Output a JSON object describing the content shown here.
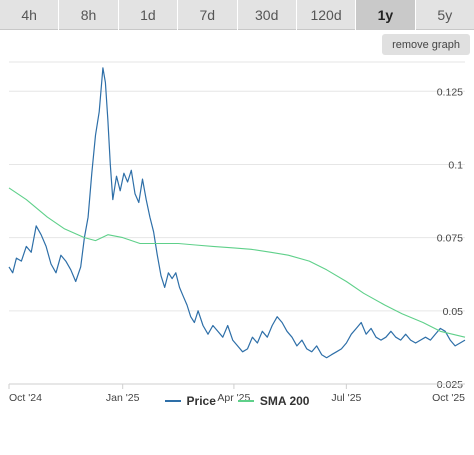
{
  "tabs": [
    {
      "label": "4h",
      "active": false
    },
    {
      "label": "8h",
      "active": false
    },
    {
      "label": "1d",
      "active": false
    },
    {
      "label": "7d",
      "active": false
    },
    {
      "label": "30d",
      "active": false
    },
    {
      "label": "120d",
      "active": false
    },
    {
      "label": "1y",
      "active": true
    },
    {
      "label": "5y",
      "active": false
    }
  ],
  "remove_graph_label": "remove graph",
  "colors": {
    "price": "#2e6fa8",
    "sma": "#5fd08a",
    "grid": "#e6e6e6",
    "axis": "#cfcfcf"
  },
  "chart_data": {
    "type": "line",
    "x_tick_labels": [
      "Oct '24",
      "Jan '25",
      "Apr '25",
      "Jul '25",
      "Oct '25"
    ],
    "y_tick_labels": [
      "0.125",
      "0.1",
      "0.075",
      "0.05",
      "0.025"
    ],
    "y_ticks": [
      0.125,
      0.1,
      0.075,
      0.05,
      0.025
    ],
    "ylim": [
      0.025,
      0.135
    ],
    "xlim": [
      "2024-10-01",
      "2025-10-05"
    ],
    "grid": true,
    "legend_position": "bottom",
    "series": [
      {
        "name": "Price",
        "color": "#2e6fa8",
        "points": [
          [
            "2024-10-01",
            0.065
          ],
          [
            "2024-10-04",
            0.063
          ],
          [
            "2024-10-07",
            0.068
          ],
          [
            "2024-10-11",
            0.067
          ],
          [
            "2024-10-15",
            0.072
          ],
          [
            "2024-10-19",
            0.07
          ],
          [
            "2024-10-23",
            0.079
          ],
          [
            "2024-10-27",
            0.076
          ],
          [
            "2024-10-31",
            0.072
          ],
          [
            "2024-11-04",
            0.066
          ],
          [
            "2024-11-08",
            0.063
          ],
          [
            "2024-11-12",
            0.069
          ],
          [
            "2024-11-16",
            0.067
          ],
          [
            "2024-11-20",
            0.064
          ],
          [
            "2024-11-24",
            0.06
          ],
          [
            "2024-11-28",
            0.065
          ],
          [
            "2024-12-01",
            0.075
          ],
          [
            "2024-12-04",
            0.082
          ],
          [
            "2024-12-07",
            0.097
          ],
          [
            "2024-12-10",
            0.11
          ],
          [
            "2024-12-13",
            0.118
          ],
          [
            "2024-12-16",
            0.133
          ],
          [
            "2024-12-18",
            0.128
          ],
          [
            "2024-12-20",
            0.115
          ],
          [
            "2024-12-22",
            0.1
          ],
          [
            "2024-12-24",
            0.088
          ],
          [
            "2024-12-27",
            0.096
          ],
          [
            "2024-12-30",
            0.091
          ],
          [
            "2025-01-02",
            0.097
          ],
          [
            "2025-01-05",
            0.094
          ],
          [
            "2025-01-08",
            0.098
          ],
          [
            "2025-01-11",
            0.09
          ],
          [
            "2025-01-14",
            0.087
          ],
          [
            "2025-01-17",
            0.095
          ],
          [
            "2025-01-20",
            0.088
          ],
          [
            "2025-01-23",
            0.082
          ],
          [
            "2025-01-26",
            0.077
          ],
          [
            "2025-01-29",
            0.069
          ],
          [
            "2025-02-01",
            0.062
          ],
          [
            "2025-02-04",
            0.058
          ],
          [
            "2025-02-07",
            0.063
          ],
          [
            "2025-02-10",
            0.061
          ],
          [
            "2025-02-13",
            0.063
          ],
          [
            "2025-02-16",
            0.058
          ],
          [
            "2025-02-19",
            0.055
          ],
          [
            "2025-02-22",
            0.052
          ],
          [
            "2025-02-25",
            0.048
          ],
          [
            "2025-02-28",
            0.046
          ],
          [
            "2025-03-03",
            0.05
          ],
          [
            "2025-03-07",
            0.045
          ],
          [
            "2025-03-11",
            0.042
          ],
          [
            "2025-03-15",
            0.045
          ],
          [
            "2025-03-19",
            0.043
          ],
          [
            "2025-03-23",
            0.041
          ],
          [
            "2025-03-27",
            0.045
          ],
          [
            "2025-03-31",
            0.04
          ],
          [
            "2025-04-04",
            0.038
          ],
          [
            "2025-04-08",
            0.036
          ],
          [
            "2025-04-12",
            0.037
          ],
          [
            "2025-04-16",
            0.041
          ],
          [
            "2025-04-20",
            0.039
          ],
          [
            "2025-04-24",
            0.043
          ],
          [
            "2025-04-28",
            0.041
          ],
          [
            "2025-05-02",
            0.045
          ],
          [
            "2025-05-06",
            0.048
          ],
          [
            "2025-05-10",
            0.046
          ],
          [
            "2025-05-14",
            0.043
          ],
          [
            "2025-05-18",
            0.041
          ],
          [
            "2025-05-22",
            0.038
          ],
          [
            "2025-05-26",
            0.04
          ],
          [
            "2025-05-30",
            0.037
          ],
          [
            "2025-06-03",
            0.036
          ],
          [
            "2025-06-07",
            0.038
          ],
          [
            "2025-06-11",
            0.035
          ],
          [
            "2025-06-15",
            0.034
          ],
          [
            "2025-06-19",
            0.035
          ],
          [
            "2025-06-23",
            0.036
          ],
          [
            "2025-06-27",
            0.037
          ],
          [
            "2025-07-01",
            0.039
          ],
          [
            "2025-07-05",
            0.042
          ],
          [
            "2025-07-09",
            0.044
          ],
          [
            "2025-07-13",
            0.046
          ],
          [
            "2025-07-17",
            0.042
          ],
          [
            "2025-07-21",
            0.044
          ],
          [
            "2025-07-25",
            0.041
          ],
          [
            "2025-07-29",
            0.04
          ],
          [
            "2025-08-02",
            0.041
          ],
          [
            "2025-08-06",
            0.043
          ],
          [
            "2025-08-10",
            0.041
          ],
          [
            "2025-08-14",
            0.04
          ],
          [
            "2025-08-18",
            0.042
          ],
          [
            "2025-08-22",
            0.04
          ],
          [
            "2025-08-26",
            0.039
          ],
          [
            "2025-08-30",
            0.04
          ],
          [
            "2025-09-03",
            0.041
          ],
          [
            "2025-09-07",
            0.04
          ],
          [
            "2025-09-11",
            0.042
          ],
          [
            "2025-09-15",
            0.044
          ],
          [
            "2025-09-19",
            0.043
          ],
          [
            "2025-09-23",
            0.04
          ],
          [
            "2025-09-27",
            0.038
          ],
          [
            "2025-10-01",
            0.039
          ],
          [
            "2025-10-05",
            0.04
          ]
        ]
      },
      {
        "name": "SMA 200",
        "color": "#5fd08a",
        "points": [
          [
            "2024-10-01",
            0.092
          ],
          [
            "2024-10-15",
            0.088
          ],
          [
            "2024-11-01",
            0.082
          ],
          [
            "2024-11-15",
            0.078
          ],
          [
            "2024-12-01",
            0.075
          ],
          [
            "2024-12-10",
            0.074
          ],
          [
            "2024-12-20",
            0.076
          ],
          [
            "2025-01-01",
            0.075
          ],
          [
            "2025-01-15",
            0.073
          ],
          [
            "2025-02-01",
            0.073
          ],
          [
            "2025-02-15",
            0.073
          ],
          [
            "2025-03-01",
            0.0725
          ],
          [
            "2025-03-15",
            0.072
          ],
          [
            "2025-04-01",
            0.0715
          ],
          [
            "2025-04-15",
            0.071
          ],
          [
            "2025-05-01",
            0.07
          ],
          [
            "2025-05-15",
            0.069
          ],
          [
            "2025-06-01",
            0.067
          ],
          [
            "2025-06-15",
            0.064
          ],
          [
            "2025-07-01",
            0.06
          ],
          [
            "2025-07-15",
            0.056
          ],
          [
            "2025-08-01",
            0.052
          ],
          [
            "2025-08-15",
            0.049
          ],
          [
            "2025-09-01",
            0.046
          ],
          [
            "2025-09-15",
            0.043
          ],
          [
            "2025-10-05",
            0.041
          ]
        ]
      }
    ]
  },
  "legend": [
    {
      "label": "Price",
      "color": "#2e6fa8"
    },
    {
      "label": "SMA 200",
      "color": "#5fd08a"
    }
  ]
}
